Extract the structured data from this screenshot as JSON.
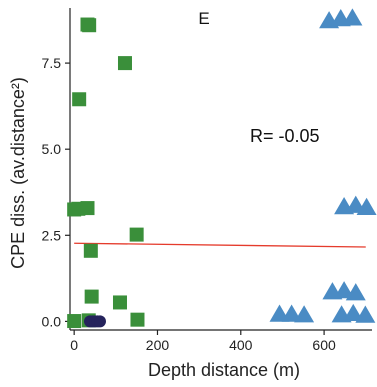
{
  "chart_data": {
    "type": "scatter",
    "panel_label": "E",
    "annotation": "R= -0.05",
    "xlabel": "Depth distance (m)",
    "ylabel": "CPE diss. (av.distance²)",
    "xlim": [
      -10,
      715
    ],
    "ylim": [
      -0.25,
      9.1
    ],
    "x_ticks": [
      0,
      200,
      400,
      600
    ],
    "y_ticks": [
      0.0,
      2.5,
      5.0,
      7.5
    ],
    "y_tick_labels": [
      "0.0",
      "2.5",
      "5.0",
      "7.5"
    ],
    "grid": false,
    "colors": {
      "squares": "#3a8f3a",
      "triangles": "#4a8bc4",
      "circles": "#25235c",
      "trend": "#e53b2c"
    },
    "series": [
      {
        "marker": "square",
        "points": [
          [
            32,
            8.62
          ],
          [
            36,
            8.6
          ],
          [
            122,
            7.5
          ],
          [
            12,
            6.45
          ],
          [
            0,
            3.25
          ],
          [
            10,
            3.27
          ],
          [
            32,
            3.29
          ],
          [
            150,
            2.52
          ],
          [
            40,
            2.05
          ],
          [
            42,
            0.72
          ],
          [
            110,
            0.55
          ],
          [
            0,
            0.01
          ],
          [
            35,
            0.03
          ],
          [
            152,
            0.05
          ]
        ]
      },
      {
        "marker": "triangle",
        "points": [
          [
            612,
            8.72
          ],
          [
            640,
            8.78
          ],
          [
            668,
            8.8
          ],
          [
            648,
            3.32
          ],
          [
            676,
            3.36
          ],
          [
            702,
            3.3
          ],
          [
            620,
            0.85
          ],
          [
            648,
            0.88
          ],
          [
            676,
            0.82
          ],
          [
            493,
            0.2
          ],
          [
            522,
            0.2
          ],
          [
            552,
            0.18
          ],
          [
            642,
            0.18
          ],
          [
            670,
            0.22
          ],
          [
            699,
            0.17
          ]
        ]
      },
      {
        "marker": "circle",
        "points": [
          [
            38,
            0.0
          ],
          [
            44,
            0.0
          ],
          [
            50,
            0.0
          ],
          [
            56,
            0.0
          ],
          [
            62,
            0.0
          ]
        ]
      }
    ],
    "trendline": {
      "x": [
        0,
        700
      ],
      "y": [
        2.27,
        2.16
      ]
    }
  }
}
